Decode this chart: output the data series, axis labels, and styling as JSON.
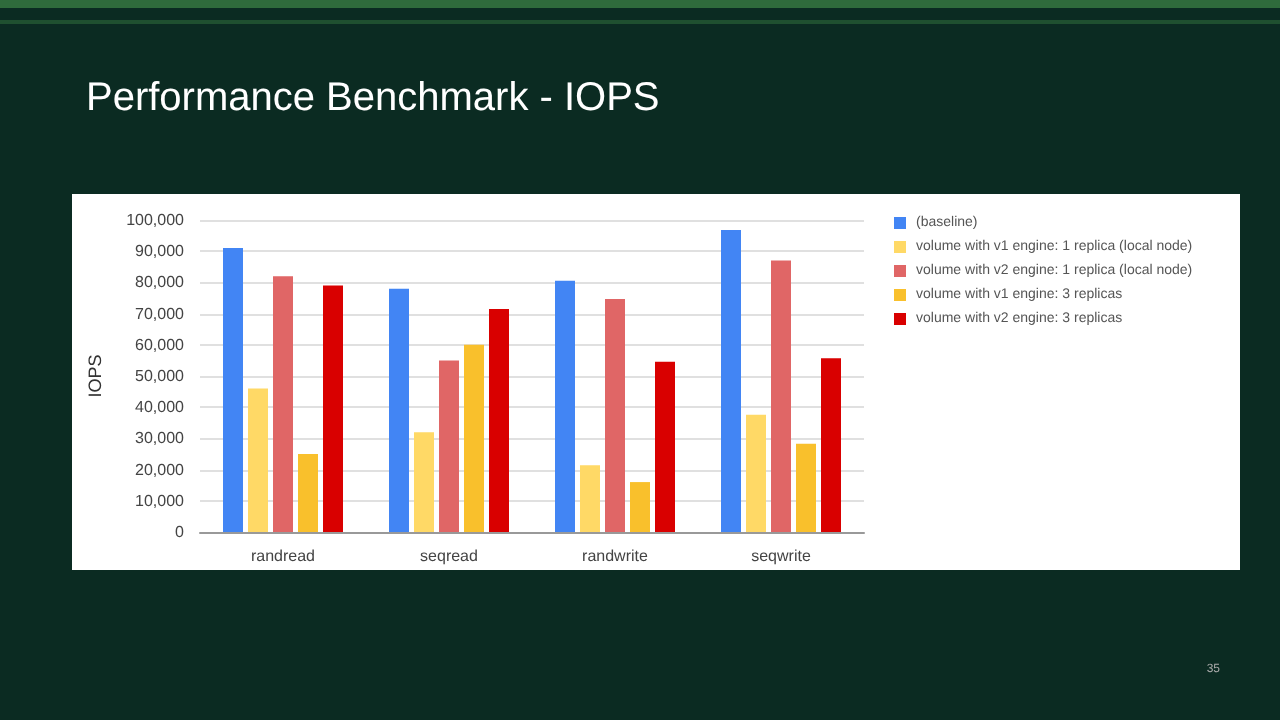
{
  "chart_data": {
    "type": "bar",
    "title": "Performance Benchmark - IOPS",
    "ylabel": "IOPS",
    "categories": [
      "randread",
      "seqread",
      "randwrite",
      "seqwrite"
    ],
    "series": [
      {
        "name": "(baseline)",
        "color": "#4285f4",
        "values": [
          91000,
          78000,
          80500,
          96800
        ]
      },
      {
        "name": "volume with v1 engine: 1 replica (local node)",
        "color": "#ffd966",
        "values": [
          46000,
          32000,
          21400,
          37600
        ]
      },
      {
        "name": "volume with v2 engine: 1 replica (local node)",
        "color": "#e06666",
        "values": [
          82000,
          55000,
          74700,
          87000
        ]
      },
      {
        "name": "volume with v1 engine: 3 replicas",
        "color": "#f9c02c",
        "values": [
          25000,
          60000,
          16000,
          28300
        ]
      },
      {
        "name": "volume with v2 engine: 3 replicas",
        "color": "#d90000",
        "values": [
          79000,
          71500,
          54600,
          55700
        ]
      }
    ],
    "ylim": [
      0,
      100000
    ],
    "yticks": [
      0,
      {
        "value": 10000,
        "label": "10,000"
      },
      {
        "value": 20000,
        "label": "20,000"
      },
      {
        "value": 30000,
        "label": "30,000"
      },
      {
        "value": 40000,
        "label": "40,000"
      },
      {
        "value": 50000,
        "label": "50,000"
      },
      {
        "value": 60000,
        "label": "60,000"
      },
      {
        "value": 70000,
        "label": "70,000"
      },
      {
        "value": 80000,
        "label": "80,000"
      },
      {
        "value": 90000,
        "label": "90,000"
      },
      {
        "value": 100000,
        "label": "100,000"
      }
    ],
    "grid": "y",
    "legend": "top right",
    "annotations": [
      "35"
    ]
  }
}
